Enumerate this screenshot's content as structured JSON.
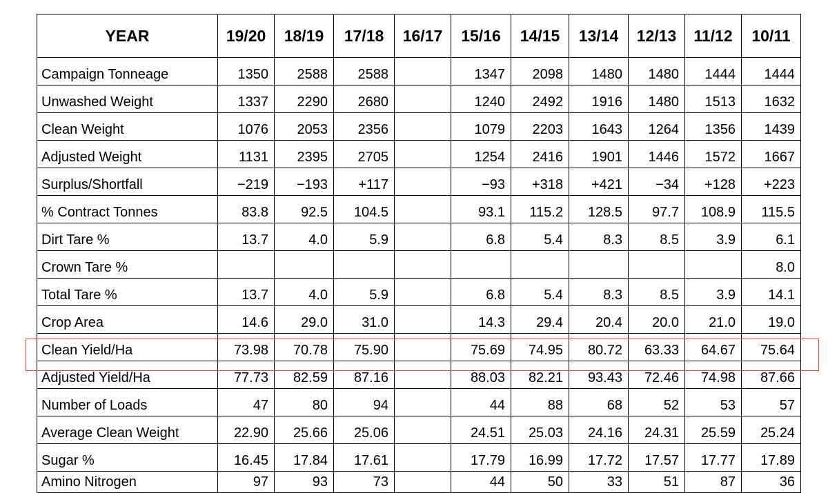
{
  "table": {
    "corner_label": "YEAR",
    "years": [
      "19/20",
      "18/19",
      "17/18",
      "16/17",
      "15/16",
      "14/15",
      "13/14",
      "12/13",
      "11/12",
      "10/11"
    ],
    "rows": [
      {
        "label": "Campaign Tonneage",
        "values": [
          "1350",
          "2588",
          "2588",
          "",
          "1347",
          "2098",
          "1480",
          "1480",
          "1444",
          "1444"
        ]
      },
      {
        "label": "Unwashed Weight",
        "values": [
          "1337",
          "2290",
          "2680",
          "",
          "1240",
          "2492",
          "1916",
          "1480",
          "1513",
          "1632"
        ]
      },
      {
        "label": "Clean Weight",
        "values": [
          "1076",
          "2053",
          "2356",
          "",
          "1079",
          "2203",
          "1643",
          "1264",
          "1356",
          "1439"
        ]
      },
      {
        "label": "Adjusted Weight",
        "values": [
          "1131",
          "2395",
          "2705",
          "",
          "1254",
          "2416",
          "1901",
          "1446",
          "1572",
          "1667"
        ]
      },
      {
        "label": "Surplus/Shortfall",
        "values": [
          "−219",
          "−193",
          "+117",
          "",
          "−93",
          "+318",
          "+421",
          "−34",
          "+128",
          "+223"
        ]
      },
      {
        "label": "% Contract Tonnes",
        "values": [
          "83.8",
          "92.5",
          "104.5",
          "",
          "93.1",
          "115.2",
          "128.5",
          "97.7",
          "108.9",
          "115.5"
        ]
      },
      {
        "label": "Dirt Tare %",
        "values": [
          "13.7",
          "4.0",
          "5.9",
          "",
          "6.8",
          "5.4",
          "8.3",
          "8.5",
          "3.9",
          "6.1"
        ]
      },
      {
        "label": "Crown Tare %",
        "values": [
          "",
          "",
          "",
          "",
          "",
          "",
          "",
          "",
          "",
          "8.0"
        ]
      },
      {
        "label": "Total Tare %",
        "values": [
          "13.7",
          "4.0",
          "5.9",
          "",
          "6.8",
          "5.4",
          "8.3",
          "8.5",
          "3.9",
          "14.1"
        ]
      },
      {
        "label": "Crop Area",
        "values": [
          "14.6",
          "29.0",
          "31.0",
          "",
          "14.3",
          "29.4",
          "20.4",
          "20.0",
          "21.0",
          "19.0"
        ]
      },
      {
        "label": "Clean Yield/Ha",
        "values": [
          "73.98",
          "70.78",
          "75.90",
          "",
          "75.69",
          "74.95",
          "80.72",
          "63.33",
          "64.67",
          "75.64"
        ]
      },
      {
        "label": "Adjusted Yield/Ha",
        "values": [
          "77.73",
          "82.59",
          "87.16",
          "",
          "88.03",
          "82.21",
          "93.43",
          "72.46",
          "74.98",
          "87.66"
        ]
      },
      {
        "label": "Number of Loads",
        "values": [
          "47",
          "80",
          "94",
          "",
          "44",
          "88",
          "68",
          "52",
          "53",
          "57"
        ]
      },
      {
        "label": "Average Clean Weight",
        "values": [
          "22.90",
          "25.66",
          "25.06",
          "",
          "24.51",
          "25.03",
          "24.16",
          "24.31",
          "25.59",
          "25.24"
        ]
      },
      {
        "label": "Sugar %",
        "values": [
          "16.45",
          "17.84",
          "17.61",
          "",
          "17.79",
          "16.99",
          "17.72",
          "17.57",
          "17.77",
          "17.89"
        ]
      },
      {
        "label": "Amino Nitrogen",
        "values": [
          "97",
          "93",
          "73",
          "",
          "44",
          "50",
          "33",
          "51",
          "87",
          "36"
        ]
      }
    ],
    "highlighted_row": "Adjusted Yield/Ha",
    "highlight_color": "#e2472f"
  }
}
